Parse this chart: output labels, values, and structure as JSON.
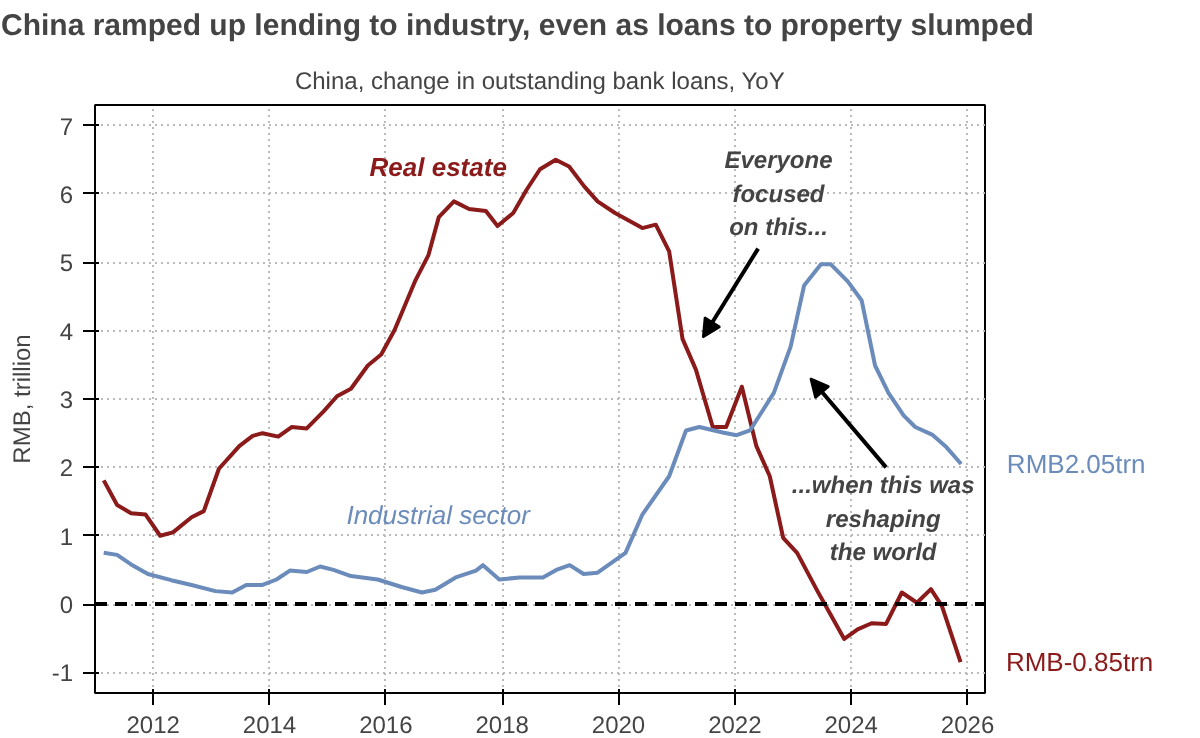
{
  "chart_data": {
    "type": "line",
    "title": "China ramped up lending to industry, even as loans to property slumped",
    "subtitle": "China, change in outstanding bank loans, YoY",
    "ylabel": "RMB, trillion",
    "series": [
      {
        "name": "Real estate",
        "color": "#8b1a1a",
        "x": [
          2011.15,
          2011.38,
          2011.62,
          2011.87,
          2012.12,
          2012.34,
          2012.66,
          2012.87,
          2013.13,
          2013.48,
          2013.71,
          2013.88,
          2014.15,
          2014.38,
          2014.64,
          2014.93,
          2015.16,
          2015.4,
          2015.69,
          2015.92,
          2016.15,
          2016.5,
          2016.73,
          2016.91,
          2017.17,
          2017.43,
          2017.72,
          2017.92,
          2018.19,
          2018.42,
          2018.65,
          2018.92,
          2019.15,
          2019.41,
          2019.64,
          2019.94,
          2020.41,
          2020.64,
          2020.87,
          2021.1,
          2021.33,
          2021.62,
          2021.85,
          2022.12,
          2022.37,
          2022.6,
          2022.83,
          2023.07,
          2023.42,
          2023.88,
          2024.11,
          2024.35,
          2024.6,
          2024.87,
          2025.13,
          2025.37,
          2025.56,
          2025.88
        ],
        "values": [
          1.81,
          1.45,
          1.33,
          1.31,
          1.0,
          1.05,
          1.27,
          1.36,
          1.98,
          2.31,
          2.46,
          2.5,
          2.45,
          2.59,
          2.57,
          2.82,
          3.04,
          3.15,
          3.49,
          3.65,
          4.01,
          4.72,
          5.1,
          5.66,
          5.89,
          5.78,
          5.75,
          5.53,
          5.72,
          6.06,
          6.36,
          6.5,
          6.4,
          6.11,
          5.89,
          5.72,
          5.5,
          5.55,
          5.16,
          3.88,
          3.43,
          2.59,
          2.59,
          3.18,
          2.31,
          1.87,
          0.97,
          0.75,
          0.19,
          -0.51,
          -0.37,
          -0.28,
          -0.29,
          0.17,
          0.02,
          0.22,
          -0.03,
          -0.85
        ]
      },
      {
        "name": "Industrial sector",
        "color": "#6b8cba",
        "x": [
          2011.15,
          2011.38,
          2011.62,
          2011.91,
          2012.31,
          2012.66,
          2013.07,
          2013.36,
          2013.6,
          2013.88,
          2014.12,
          2014.35,
          2014.64,
          2014.87,
          2015.1,
          2015.4,
          2015.86,
          2016.27,
          2016.62,
          2016.85,
          2017.2,
          2017.55,
          2017.67,
          2017.95,
          2018.3,
          2018.7,
          2018.93,
          2019.16,
          2019.4,
          2019.64,
          2020.12,
          2020.41,
          2020.87,
          2021.16,
          2021.39,
          2021.79,
          2022.03,
          2022.26,
          2022.67,
          2022.96,
          2023.19,
          2023.48,
          2023.65,
          2023.94,
          2024.18,
          2024.41,
          2024.64,
          2024.9,
          2025.1,
          2025.39,
          2025.62,
          2025.89
        ],
        "values": [
          0.75,
          0.72,
          0.58,
          0.44,
          0.35,
          0.28,
          0.19,
          0.17,
          0.28,
          0.28,
          0.36,
          0.49,
          0.47,
          0.55,
          0.5,
          0.41,
          0.36,
          0.25,
          0.17,
          0.21,
          0.39,
          0.49,
          0.57,
          0.36,
          0.39,
          0.39,
          0.5,
          0.57,
          0.44,
          0.46,
          0.75,
          1.31,
          1.87,
          2.54,
          2.59,
          2.51,
          2.47,
          2.54,
          3.09,
          3.77,
          4.66,
          4.97,
          4.97,
          4.72,
          4.44,
          3.49,
          3.09,
          2.76,
          2.59,
          2.48,
          2.31,
          2.05
        ]
      }
    ],
    "xlim": [
      2011,
      2026.3
    ],
    "xticks": [
      2012,
      2014,
      2016,
      2018,
      2020,
      2022,
      2024,
      2026
    ],
    "ylim": [
      -1.3,
      7.3
    ],
    "yticks": [
      -1,
      0,
      1,
      2,
      3,
      4,
      5,
      6,
      7
    ],
    "grid": true,
    "legend": false,
    "ref_lines": [
      {
        "axis": "y",
        "value": 0,
        "color": "#000000",
        "line_style": "dashed"
      }
    ],
    "annotations": [
      "Everyone\nfocused\non this...",
      "...when this was\nreshaping\nthe world",
      {
        "text": "RMB2.05trn",
        "x": 2025.89,
        "y": 2.05
      },
      {
        "text": "RMB-0.85trn",
        "x": 2025.88,
        "y": -0.85
      }
    ]
  }
}
